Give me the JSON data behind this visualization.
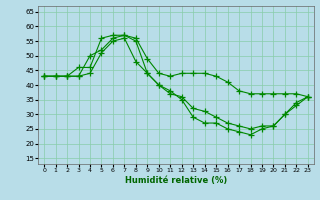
{
  "xlabel": "Humidité relative (%)",
  "background_color": "#b8dde8",
  "grid_color": "#88ccaa",
  "line_color": "#008800",
  "xlim": [
    -0.5,
    23.5
  ],
  "ylim": [
    13,
    67
  ],
  "yticks": [
    15,
    20,
    25,
    30,
    35,
    40,
    45,
    50,
    55,
    60,
    65
  ],
  "xticks": [
    0,
    1,
    2,
    3,
    4,
    5,
    6,
    7,
    8,
    9,
    10,
    11,
    12,
    13,
    14,
    15,
    16,
    17,
    18,
    19,
    20,
    21,
    22,
    23
  ],
  "line1": {
    "x": [
      0,
      1,
      2,
      3,
      4,
      5,
      6,
      7,
      8,
      9,
      10,
      11,
      12,
      13,
      14,
      15,
      16,
      17,
      18,
      19,
      20,
      21,
      22,
      23
    ],
    "y": [
      43,
      43,
      43,
      46,
      46,
      56,
      57,
      57,
      56,
      49,
      44,
      43,
      44,
      44,
      44,
      43,
      41,
      38,
      37,
      37,
      37,
      37,
      37,
      36
    ]
  },
  "line2": {
    "x": [
      0,
      1,
      2,
      3,
      4,
      5,
      6,
      7,
      8,
      9,
      10,
      11,
      12,
      13,
      14,
      15,
      16,
      17,
      18,
      19,
      20,
      21,
      22,
      23
    ],
    "y": [
      43,
      43,
      43,
      43,
      44,
      51,
      55,
      56,
      48,
      44,
      40,
      37,
      36,
      32,
      31,
      29,
      27,
      26,
      25,
      26,
      26,
      30,
      34,
      36
    ]
  },
  "line3": {
    "x": [
      0,
      1,
      2,
      3,
      4,
      5,
      6,
      7,
      8,
      9,
      10,
      11,
      12,
      13,
      14,
      15,
      16,
      17,
      18,
      19,
      20,
      21,
      22,
      23
    ],
    "y": [
      43,
      43,
      43,
      43,
      50,
      52,
      56,
      57,
      55,
      44,
      40,
      38,
      35,
      29,
      27,
      27,
      25,
      24,
      23,
      25,
      26,
      30,
      33,
      36
    ]
  }
}
